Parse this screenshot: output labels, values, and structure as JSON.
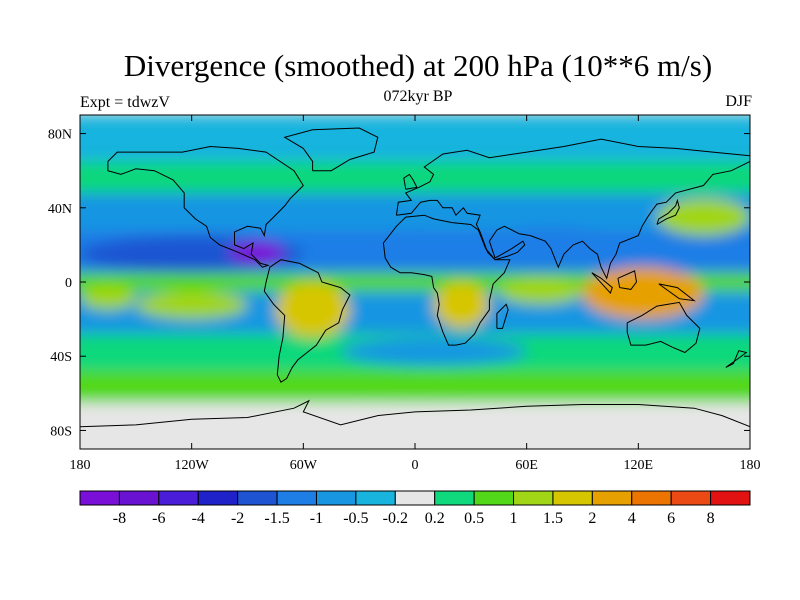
{
  "title": "Divergence (smoothed) at 200 hPa (10**6 m/s)",
  "subtitle": "072kyr BP",
  "left_label": "Expt = tdwzV",
  "right_label": "DJF",
  "chart_data": {
    "type": "heatmap",
    "x_axis": {
      "range": [
        -180,
        180
      ],
      "ticks": [
        -180,
        -120,
        -60,
        0,
        60,
        120,
        180
      ],
      "tick_labels": [
        "180",
        "120W",
        "60W",
        "0",
        "60E",
        "120E",
        "180"
      ]
    },
    "y_axis": {
      "range": [
        -90,
        90
      ],
      "ticks": [
        80,
        40,
        0,
        -40,
        -80
      ],
      "tick_labels": [
        "80N",
        "40N",
        "0",
        "40S",
        "80S"
      ]
    },
    "colorbar": {
      "levels": [
        "-8",
        "-6",
        "-4",
        "-2",
        "-1.5",
        "-1",
        "-0.5",
        "-0.2",
        "0.2",
        "0.5",
        "1",
        "1.5",
        "2",
        "4",
        "6",
        "8"
      ],
      "colors": [
        "#7a10d8",
        "#6a12d2",
        "#4a1ed8",
        "#1e22c8",
        "#1e54d2",
        "#1e7ee6",
        "#1896e2",
        "#18b4de",
        "#e6e6e6",
        "#10d87c",
        "#52d818",
        "#a0d616",
        "#d6c600",
        "#e6a000",
        "#ec7400",
        "#ec4a14",
        "#e21212"
      ]
    },
    "regions": [
      {
        "name": "pacific-tropical-convergence",
        "lon": [
          -180,
          -60
        ],
        "lat": [
          5,
          25
        ],
        "class": -4
      },
      {
        "name": "caribbean-convergence-core",
        "lon": [
          -100,
          -70
        ],
        "lat": [
          10,
          22
        ],
        "class": -8
      },
      {
        "name": "atlantic-tropical-convergence",
        "lon": [
          -40,
          30
        ],
        "lat": [
          8,
          28
        ],
        "class": -3
      },
      {
        "name": "asia-subtropical-convergence",
        "lon": [
          35,
          110
        ],
        "lat": [
          10,
          30
        ],
        "class": -3
      },
      {
        "name": "south-america-divergence",
        "lon": [
          -75,
          -35
        ],
        "lat": [
          -30,
          0
        ],
        "class": 4
      },
      {
        "name": "africa-divergence",
        "lon": [
          10,
          40
        ],
        "lat": [
          -25,
          0
        ],
        "class": 4
      },
      {
        "name": "indian-ocean-divergence",
        "lon": [
          45,
          90
        ],
        "lat": [
          -12,
          2
        ],
        "class": 3
      },
      {
        "name": "maritime-continent-divergence",
        "lon": [
          90,
          155
        ],
        "lat": [
          -20,
          8
        ],
        "class": 5
      },
      {
        "name": "north-pacific-divergence",
        "lon": [
          130,
          180
        ],
        "lat": [
          25,
          45
        ],
        "class": 3
      },
      {
        "name": "east-pacific-divergence",
        "lon": [
          -180,
          -150
        ],
        "lat": [
          -15,
          -2
        ],
        "class": 3
      },
      {
        "name": "south-pacific-divergence",
        "lon": [
          -150,
          -90
        ],
        "lat": [
          -20,
          -5
        ],
        "class": 3
      },
      {
        "name": "southern-ocean-convergence",
        "lon": [
          -40,
          60
        ],
        "lat": [
          -45,
          -30
        ],
        "class": -2
      },
      {
        "name": "antarctic-weak",
        "lon": [
          -180,
          180
        ],
        "lat": [
          -90,
          -65
        ],
        "class": 0
      }
    ]
  }
}
